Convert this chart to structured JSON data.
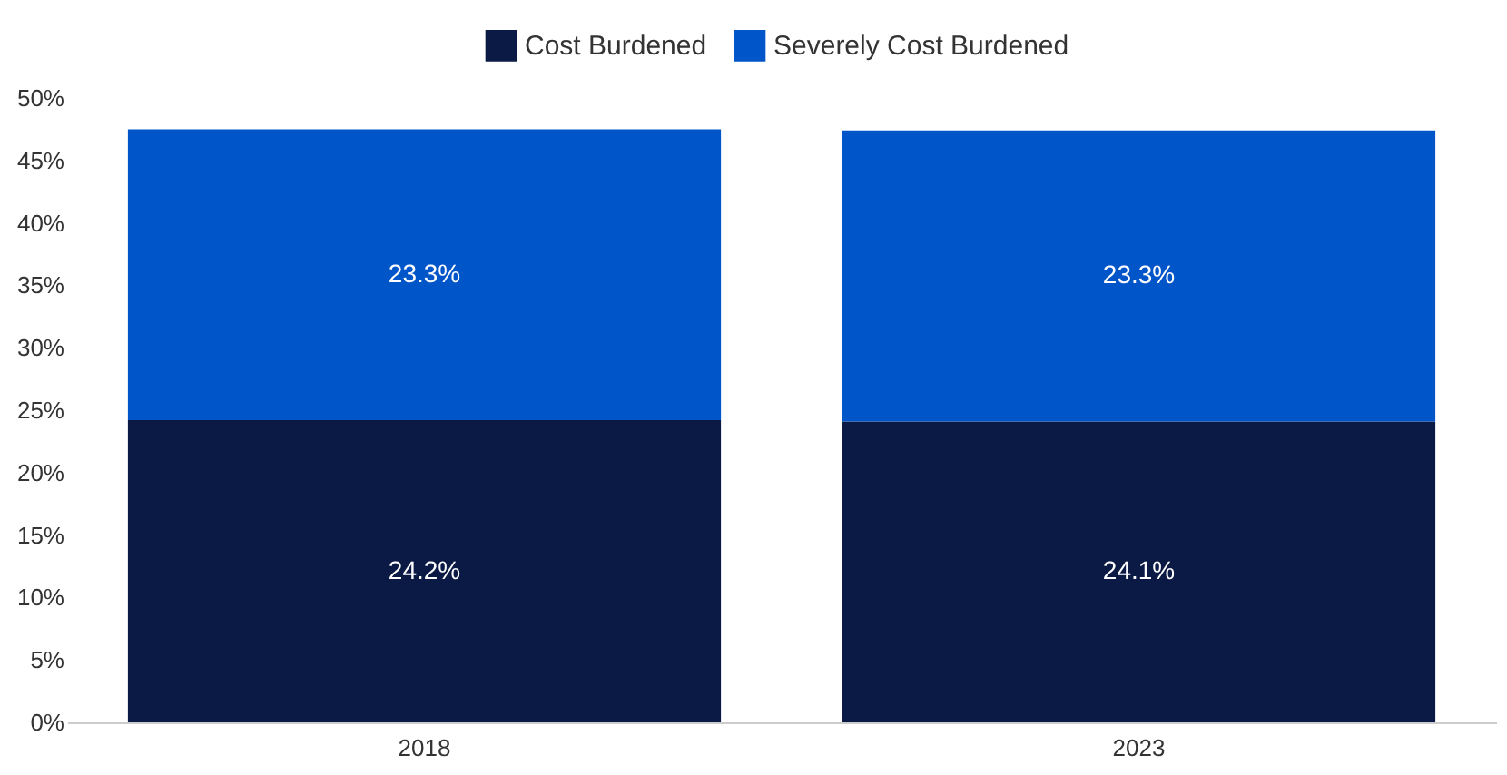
{
  "chart_data": {
    "type": "bar",
    "stacked": true,
    "categories": [
      "2018",
      "2023"
    ],
    "series": [
      {
        "name": "Cost Burdened",
        "color": "#0a1a45",
        "values": [
          24.2,
          24.1
        ],
        "value_labels": [
          "24.2%",
          "24.1%"
        ]
      },
      {
        "name": "Severely Cost Burdened",
        "color": "#0055c8",
        "values": [
          23.3,
          23.3
        ],
        "value_labels": [
          "23.3%",
          "23.3%"
        ]
      }
    ],
    "ylim": [
      0,
      50
    ],
    "yticks": [
      {
        "value": 0,
        "label": "0%"
      },
      {
        "value": 5,
        "label": "5%"
      },
      {
        "value": 10,
        "label": "10%"
      },
      {
        "value": 15,
        "label": "15%"
      },
      {
        "value": 20,
        "label": "20%"
      },
      {
        "value": 25,
        "label": "25%"
      },
      {
        "value": 30,
        "label": "30%"
      },
      {
        "value": 35,
        "label": "35%"
      },
      {
        "value": 40,
        "label": "40%"
      },
      {
        "value": 45,
        "label": "45%"
      },
      {
        "value": 50,
        "label": "50%"
      }
    ],
    "legend": "top"
  }
}
